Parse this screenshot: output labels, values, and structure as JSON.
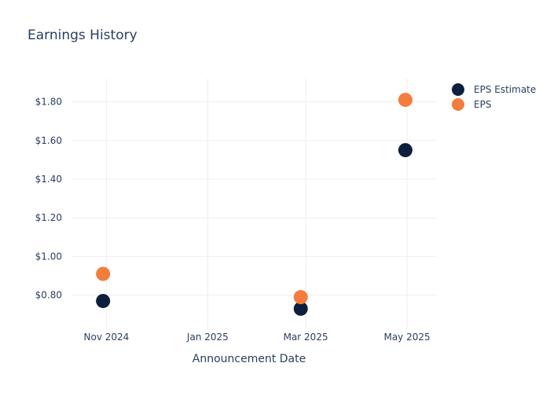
{
  "chart_data": {
    "type": "scatter",
    "title": "Earnings History",
    "xlabel": "Announcement Date",
    "ylabel": "",
    "x_ticks": [
      {
        "label": "Nov 2024",
        "date": "2024-11-01"
      },
      {
        "label": "Jan 2025",
        "date": "2025-01-01"
      },
      {
        "label": "Mar 2025",
        "date": "2025-03-01"
      },
      {
        "label": "May 2025",
        "date": "2025-05-01"
      }
    ],
    "y_ticks": [
      {
        "label": "$0.80",
        "value": 0.8
      },
      {
        "label": "$1.00",
        "value": 1.0
      },
      {
        "label": "$1.20",
        "value": 1.2
      },
      {
        "label": "$1.40",
        "value": 1.4
      },
      {
        "label": "$1.60",
        "value": 1.6
      },
      {
        "label": "$1.80",
        "value": 1.8
      }
    ],
    "xlim": [
      "2024-10-11",
      "2025-05-18"
    ],
    "ylim": [
      0.62,
      1.92
    ],
    "grid": true,
    "legend_position": "top-right",
    "series": [
      {
        "name": "EPS Estimate",
        "color": "#0d1f3c",
        "points": [
          {
            "x": "2024-10-30",
            "y": 0.77
          },
          {
            "x": "2025-02-26",
            "y": 0.73
          },
          {
            "x": "2025-04-30",
            "y": 1.55
          }
        ]
      },
      {
        "name": "EPS",
        "color": "#f47c3c",
        "points": [
          {
            "x": "2024-10-30",
            "y": 0.91
          },
          {
            "x": "2025-02-26",
            "y": 0.79
          },
          {
            "x": "2025-04-30",
            "y": 1.81
          }
        ]
      }
    ]
  }
}
